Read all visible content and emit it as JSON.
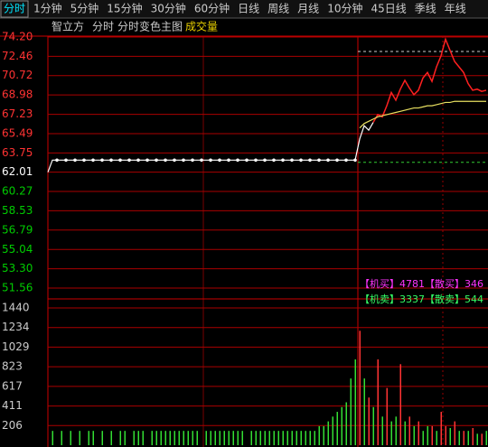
{
  "tabs": [
    "分时",
    "1分钟",
    "5分钟",
    "15分钟",
    "30分钟",
    "60分钟",
    "日线",
    "周线",
    "月线",
    "10分钟",
    "45日线",
    "季线",
    "年线"
  ],
  "header": {
    "items": [
      "智立方",
      "分时",
      "分时变色主图"
    ],
    "volume_label": "成交量"
  },
  "chart_data": [
    {
      "type": "line",
      "ylim": [
        51.56,
        74.2
      ],
      "yticks": [
        {
          "value": 74.2,
          "label": "74.20"
        },
        72.46,
        70.72,
        68.98,
        67.23,
        65.49,
        63.75,
        62.01,
        60.27,
        58.53,
        56.79,
        55.04,
        {
          "value": 53.3,
          "label": "53.30"
        },
        51.56
      ],
      "base": 62.01,
      "up_color": "#ff3333",
      "down_color": "#00cc00",
      "base_color": "#ffffff",
      "grid": true,
      "ref_lines": [
        72.9,
        62.9
      ],
      "series": [
        {
          "color": "#ffffff",
          "values": [
            62.01,
            63.1,
            63.1,
            63.1,
            63.1,
            63.1,
            63.1,
            63.1,
            63.1,
            63.1,
            63.1,
            63.1,
            63.1,
            63.1,
            63.1,
            63.1,
            63.1,
            63.1,
            63.1,
            63.1,
            63.1,
            63.1,
            63.1,
            63.1,
            63.1,
            63.1,
            63.1,
            63.1,
            63.1,
            63.1,
            63.1,
            63.1,
            63.1,
            63.1,
            63.1,
            63.1,
            63.1,
            63.1,
            63.1,
            63.1,
            63.1,
            63.1,
            63.1,
            63.1,
            63.1,
            63.1,
            63.1,
            63.1,
            63.1,
            63.1,
            63.1,
            63.1,
            63.1,
            63.1,
            63.1,
            63.1,
            63.1,
            63.1,
            63.1,
            63.1,
            63.1,
            63.1,
            63.1,
            63.1,
            63.1,
            63.1,
            63.1,
            63.1,
            63.1,
            65.0,
            66.2,
            65.8,
            66.5,
            null,
            null,
            null,
            null,
            null,
            null,
            null,
            null,
            null,
            null,
            null,
            null,
            null,
            null,
            null,
            null,
            null,
            null,
            null,
            null,
            null,
            null,
            null,
            null,
            null
          ]
        },
        {
          "color": "#ff2020",
          "values": [
            null,
            null,
            null,
            null,
            null,
            null,
            null,
            null,
            null,
            null,
            null,
            null,
            null,
            null,
            null,
            null,
            null,
            null,
            null,
            null,
            null,
            null,
            null,
            null,
            null,
            null,
            null,
            null,
            null,
            null,
            null,
            null,
            null,
            null,
            null,
            null,
            null,
            null,
            null,
            null,
            null,
            null,
            null,
            null,
            null,
            null,
            null,
            null,
            null,
            null,
            null,
            null,
            null,
            null,
            null,
            null,
            null,
            null,
            null,
            null,
            null,
            null,
            null,
            null,
            null,
            null,
            null,
            null,
            null,
            null,
            null,
            null,
            66.5,
            67.2,
            67.0,
            68.0,
            69.2,
            68.5,
            69.5,
            70.3,
            69.6,
            69.0,
            69.4,
            70.5,
            71.0,
            70.2,
            71.5,
            72.5,
            74.0,
            73.0,
            72.0,
            71.5,
            71.0,
            70.0,
            69.4,
            69.5,
            69.3,
            69.4
          ]
        },
        {
          "color": "#e8e060",
          "values": [
            null,
            null,
            null,
            null,
            null,
            null,
            null,
            null,
            null,
            null,
            null,
            null,
            null,
            null,
            null,
            null,
            null,
            null,
            null,
            null,
            null,
            null,
            null,
            null,
            null,
            null,
            null,
            null,
            null,
            null,
            null,
            null,
            null,
            null,
            null,
            null,
            null,
            null,
            null,
            null,
            null,
            null,
            null,
            null,
            null,
            null,
            null,
            null,
            null,
            null,
            null,
            null,
            null,
            null,
            null,
            null,
            null,
            null,
            null,
            null,
            null,
            null,
            null,
            null,
            null,
            null,
            null,
            null,
            null,
            66.0,
            66.4,
            66.6,
            66.8,
            67.0,
            67.1,
            67.2,
            67.3,
            67.4,
            67.5,
            67.6,
            67.7,
            67.8,
            67.8,
            67.9,
            68.0,
            68.0,
            68.1,
            68.2,
            68.3,
            68.3,
            68.4,
            68.4,
            68.4,
            68.4,
            68.4,
            68.4,
            68.4,
            68.4
          ]
        }
      ],
      "annotations": [
        {
          "text": "【机买】4781【散买】346",
          "color": "#ff33ff"
        },
        {
          "text": "【机卖】3337【散卖】544",
          "color": "#33ff66"
        }
      ]
    },
    {
      "type": "bar",
      "ylim": [
        0,
        1440
      ],
      "yticks": [
        1440,
        1234,
        1029,
        823,
        617,
        411,
        206
      ],
      "grid": true,
      "series": [
        {
          "color": "#ff3333",
          "values": [
            null,
            null,
            null,
            null,
            null,
            null,
            null,
            null,
            null,
            null,
            null,
            null,
            null,
            null,
            null,
            null,
            null,
            null,
            null,
            null,
            null,
            null,
            null,
            null,
            null,
            null,
            null,
            null,
            null,
            null,
            null,
            null,
            null,
            null,
            null,
            null,
            null,
            null,
            null,
            null,
            null,
            null,
            null,
            null,
            null,
            null,
            null,
            null,
            null,
            null,
            null,
            null,
            null,
            null,
            null,
            null,
            null,
            null,
            null,
            null,
            null,
            null,
            null,
            null,
            null,
            null,
            null,
            null,
            null,
            1200,
            null,
            500,
            null,
            900,
            null,
            600,
            null,
            null,
            850,
            null,
            300,
            null,
            250,
            null,
            null,
            200,
            null,
            350,
            200,
            null,
            250,
            null,
            150,
            null,
            180,
            null,
            120,
            null
          ]
        },
        {
          "color": "#33dd33",
          "values": [
            null,
            150,
            null,
            150,
            null,
            150,
            null,
            150,
            null,
            150,
            150,
            null,
            150,
            null,
            150,
            null,
            150,
            150,
            null,
            150,
            150,
            150,
            null,
            150,
            150,
            150,
            150,
            150,
            150,
            150,
            150,
            150,
            150,
            150,
            null,
            150,
            150,
            150,
            150,
            150,
            150,
            150,
            150,
            150,
            null,
            150,
            150,
            150,
            150,
            150,
            150,
            150,
            150,
            150,
            150,
            150,
            150,
            150,
            150,
            150,
            200,
            200,
            250,
            300,
            350,
            400,
            450,
            700,
            900,
            null,
            700,
            null,
            400,
            null,
            300,
            null,
            250,
            300,
            null,
            250,
            null,
            200,
            null,
            150,
            200,
            null,
            150,
            null,
            null,
            180,
            null,
            150,
            null,
            150,
            null,
            120,
            null,
            150
          ]
        }
      ]
    }
  ]
}
